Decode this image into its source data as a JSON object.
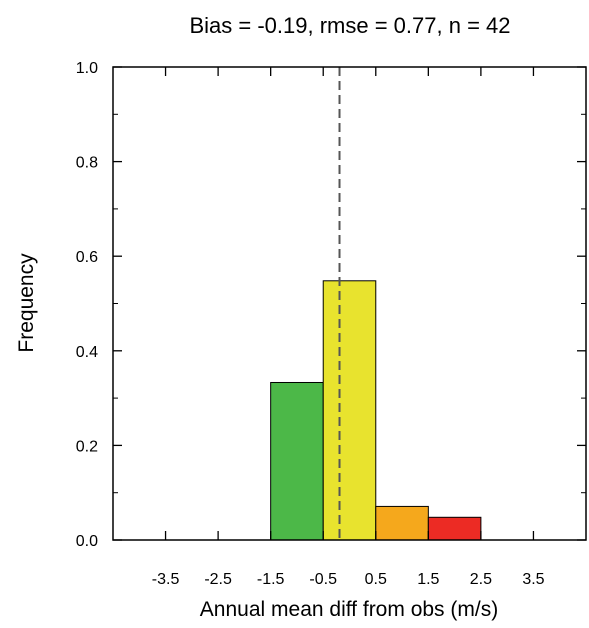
{
  "chart_data": {
    "type": "bar",
    "title": "Bias = -0.19, rmse = 0.77, n = 42",
    "xlabel": "Annual mean diff from obs (m/s)",
    "ylabel": "Frequency",
    "xlim": [
      -4.5,
      4.5
    ],
    "ylim": [
      0,
      1.0
    ],
    "x_ticks": [
      -3.5,
      -2.5,
      -1.5,
      -0.5,
      0.5,
      1.5,
      2.5,
      3.5
    ],
    "x_tick_labels": [
      "-3.5",
      "-2.5",
      "-1.5",
      "-0.5",
      "0.5",
      "1.5",
      "2.5",
      "3.5"
    ],
    "y_ticks": [
      0.0,
      0.2,
      0.4,
      0.6,
      0.8,
      1.0
    ],
    "y_tick_labels": [
      "0.0",
      "0.2",
      "0.4",
      "0.6",
      "0.8",
      "1.0"
    ],
    "bins": [
      {
        "from": -1.5,
        "to": -0.5,
        "value": 0.333,
        "color": "#4cb848"
      },
      {
        "from": -0.5,
        "to": 0.5,
        "value": 0.548,
        "color": "#e8e32e"
      },
      {
        "from": 0.5,
        "to": 1.5,
        "value": 0.071,
        "color": "#f5a81c"
      },
      {
        "from": 1.5,
        "to": 2.5,
        "value": 0.048,
        "color": "#ec2b24"
      }
    ],
    "reference_line": {
      "x": -0.19,
      "style": "dashed",
      "color": "#555555"
    },
    "grid": false,
    "legend": "none"
  }
}
